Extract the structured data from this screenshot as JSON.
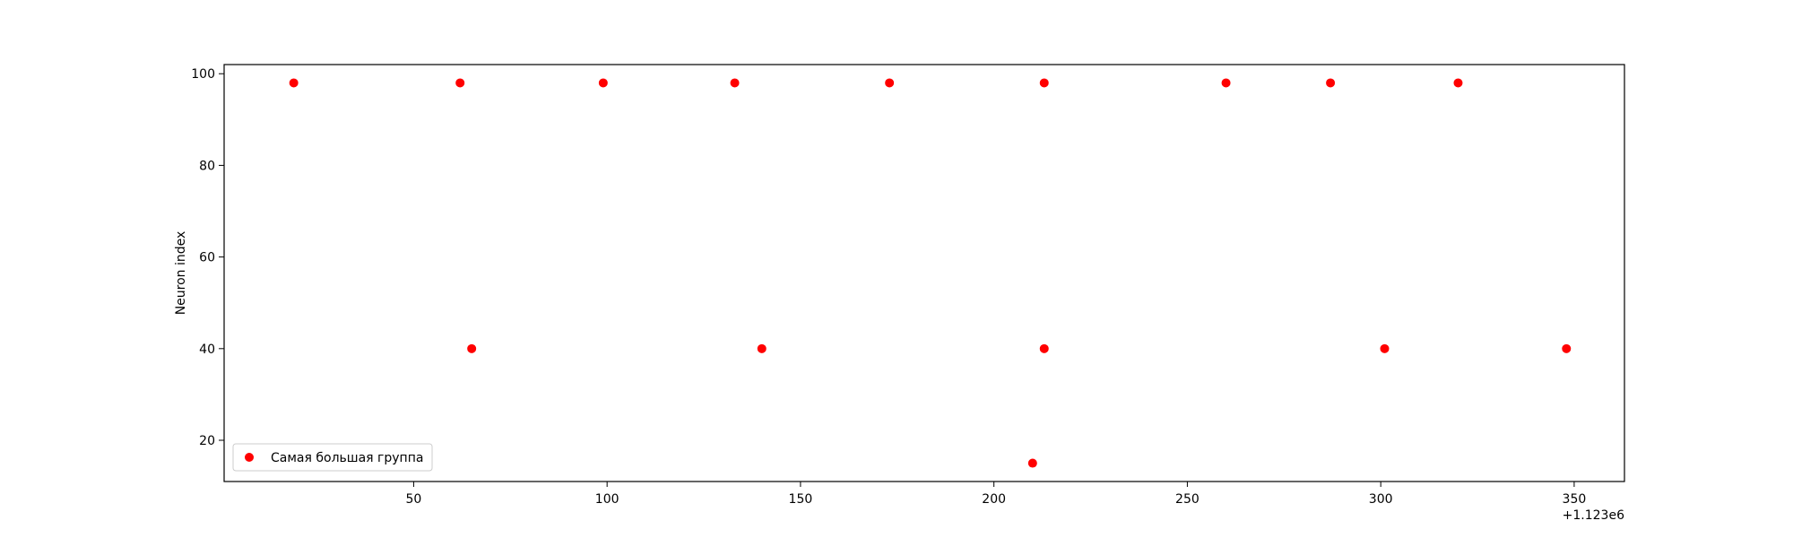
{
  "chart_data": {
    "type": "scatter",
    "title": "",
    "xlabel": "",
    "ylabel": "Neuron index",
    "x_offset_label": "+1.123e6",
    "xlim": [
      1,
      363
    ],
    "ylim": [
      11,
      102
    ],
    "xticks": [
      50,
      100,
      150,
      200,
      250,
      300,
      350
    ],
    "xtick_labels": [
      "50",
      "100",
      "150",
      "200",
      "250",
      "300",
      "350"
    ],
    "yticks": [
      20,
      40,
      60,
      80,
      100
    ],
    "ytick_labels": [
      "20",
      "40",
      "60",
      "80",
      "100"
    ],
    "grid": false,
    "legend_position": "lower-left",
    "marker_color": "#ff0000",
    "series": [
      {
        "name": "Самая большая группа",
        "color": "#ff0000",
        "points": [
          {
            "x": 1123019,
            "y": 98
          },
          {
            "x": 1123062,
            "y": 98
          },
          {
            "x": 1123099,
            "y": 98
          },
          {
            "x": 1123133,
            "y": 98
          },
          {
            "x": 1123173,
            "y": 98
          },
          {
            "x": 1123213,
            "y": 98
          },
          {
            "x": 1123260,
            "y": 98
          },
          {
            "x": 1123287,
            "y": 98
          },
          {
            "x": 1123320,
            "y": 98
          },
          {
            "x": 1123065,
            "y": 40
          },
          {
            "x": 1123140,
            "y": 40
          },
          {
            "x": 1123213,
            "y": 40
          },
          {
            "x": 1123301,
            "y": 40
          },
          {
            "x": 1123348,
            "y": 40
          },
          {
            "x": 1123210,
            "y": 15
          }
        ]
      }
    ]
  }
}
